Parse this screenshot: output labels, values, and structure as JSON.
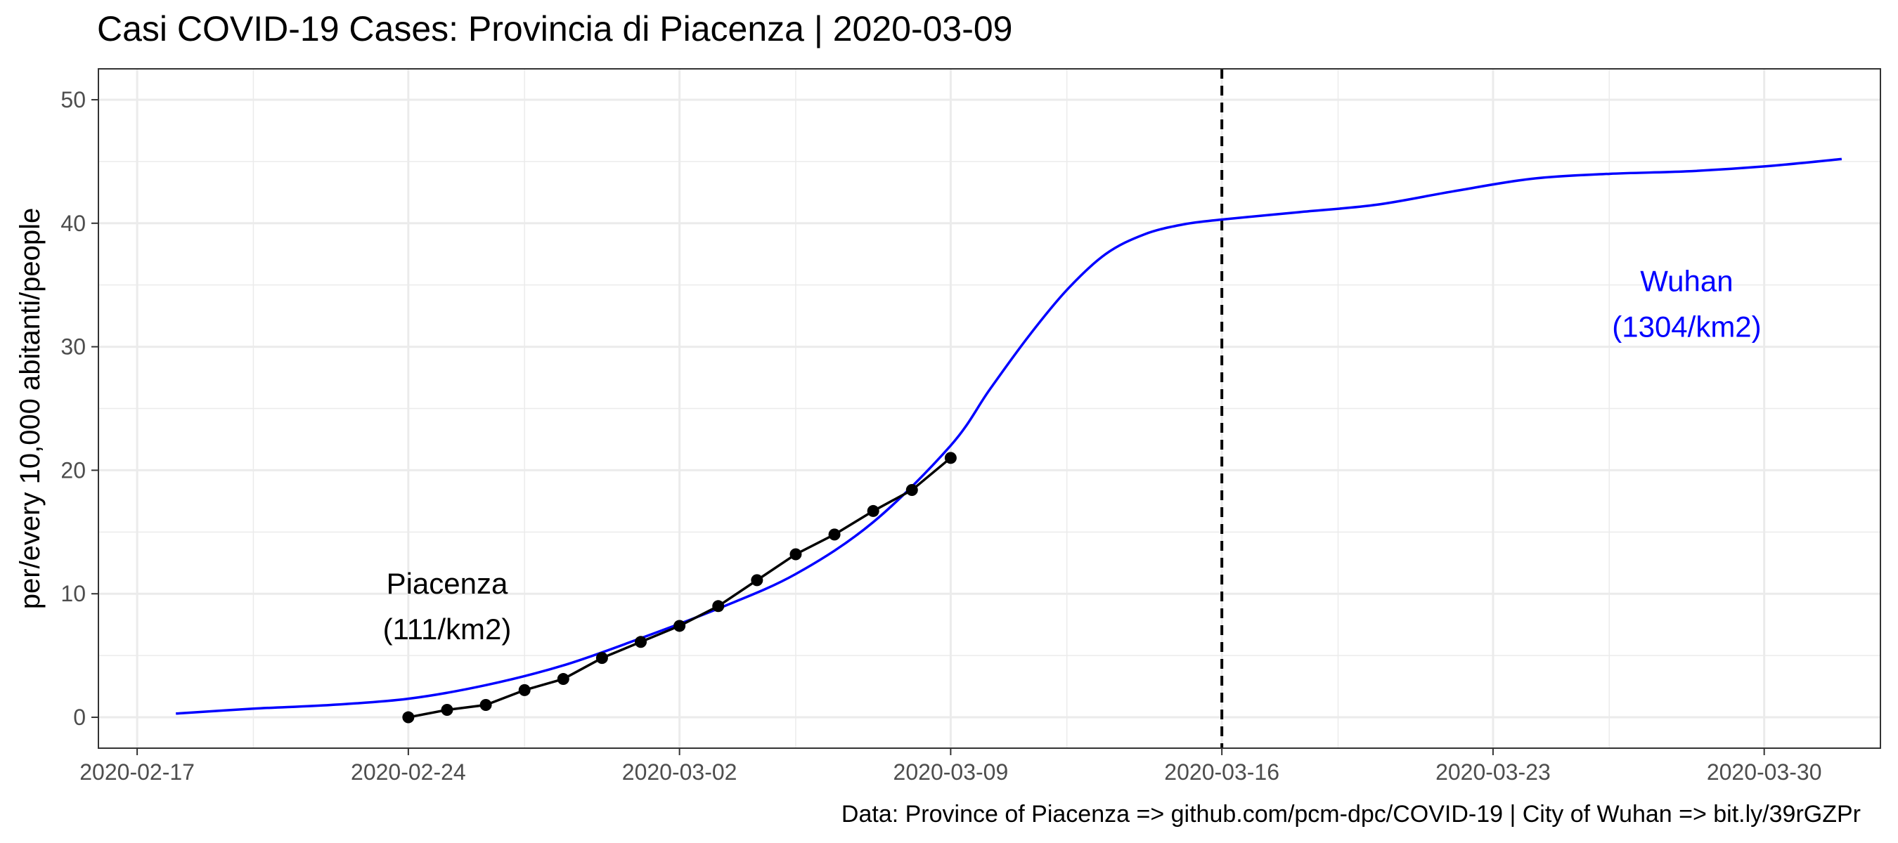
{
  "chart_data": {
    "type": "line",
    "title": "Casi COVID-19 Cases: Provincia di Piacenza | 2020-03-09",
    "ylabel": "per/every 10,000 abitanti/people",
    "xlabel": "",
    "caption": "Data: Province of Piacenza => github.com/pcm-dpc/COVID-19 | City of Wuhan => bit.ly/39rGZPr",
    "x_type": "date",
    "xlim": [
      "2020-02-16",
      "2020-04-02"
    ],
    "ylim": [
      -2.5,
      52.5
    ],
    "x_ticks": [
      "2020-02-17",
      "2020-02-24",
      "2020-03-02",
      "2020-03-09",
      "2020-03-16",
      "2020-03-23",
      "2020-03-30"
    ],
    "y_ticks": [
      0,
      10,
      20,
      30,
      40,
      50
    ],
    "grid": true,
    "vline": {
      "x": "2020-03-16",
      "style": "dashed",
      "color": "#000000"
    },
    "annotations": [
      {
        "lines": [
          "Piacenza",
          "(111/km2)"
        ],
        "x": "2020-02-25",
        "y": 10,
        "color": "#000000"
      },
      {
        "lines": [
          "Wuhan",
          "(1304/km2)"
        ],
        "x": "2020-03-28",
        "y": 34.5,
        "color": "#0000ff"
      }
    ],
    "series": [
      {
        "name": "Wuhan",
        "color": "#0000ff",
        "markers": false,
        "x": [
          "2020-02-18",
          "2020-02-20",
          "2020-02-22",
          "2020-02-24",
          "2020-02-26",
          "2020-02-28",
          "2020-03-01",
          "2020-03-03",
          "2020-03-05",
          "2020-03-07",
          "2020-03-09",
          "2020-03-10",
          "2020-03-11",
          "2020-03-12",
          "2020-03-13",
          "2020-03-14",
          "2020-03-15",
          "2020-03-16",
          "2020-03-18",
          "2020-03-20",
          "2020-03-22",
          "2020-03-24",
          "2020-03-26",
          "2020-03-28",
          "2020-03-30",
          "2020-04-01"
        ],
        "values": [
          0.3,
          0.7,
          1.0,
          1.5,
          2.6,
          4.2,
          6.4,
          8.8,
          11.6,
          15.8,
          22.0,
          26.5,
          30.8,
          34.6,
          37.5,
          39.1,
          39.9,
          40.3,
          40.9,
          41.5,
          42.6,
          43.6,
          44.0,
          44.2,
          44.6,
          45.2
        ]
      },
      {
        "name": "Piacenza",
        "color": "#000000",
        "markers": true,
        "x": [
          "2020-02-24",
          "2020-02-25",
          "2020-02-26",
          "2020-02-27",
          "2020-02-28",
          "2020-02-29",
          "2020-03-01",
          "2020-03-02",
          "2020-03-03",
          "2020-03-04",
          "2020-03-05",
          "2020-03-06",
          "2020-03-07",
          "2020-03-08",
          "2020-03-09"
        ],
        "values": [
          0.0,
          0.6,
          1.0,
          2.2,
          3.1,
          4.8,
          6.1,
          7.4,
          9.0,
          11.1,
          13.2,
          14.8,
          16.7,
          18.4,
          21.0
        ]
      }
    ]
  }
}
